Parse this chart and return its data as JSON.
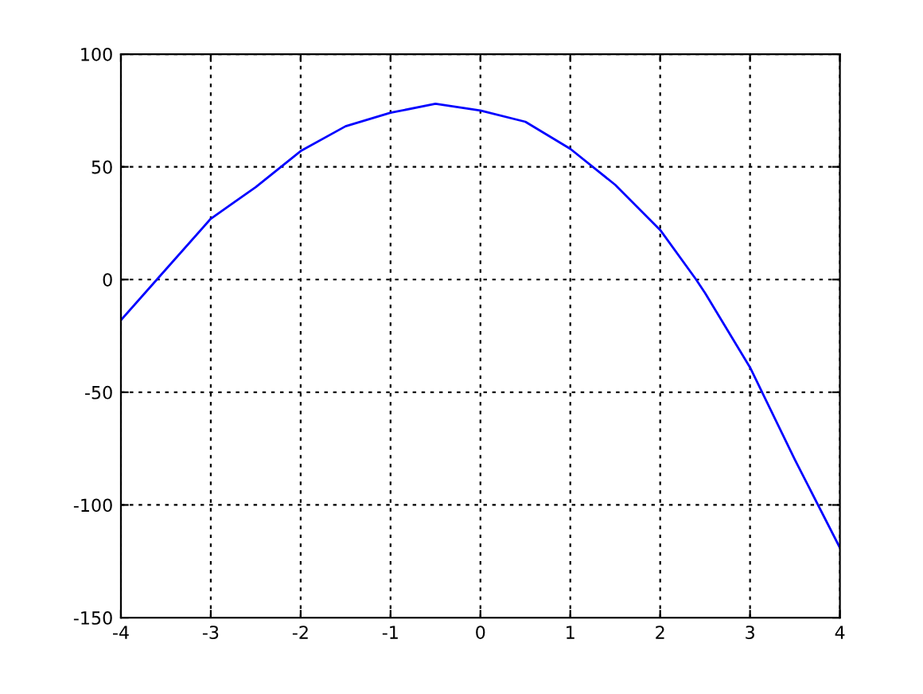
{
  "chart_data": {
    "type": "line",
    "x": [
      -4,
      -3.6,
      -3,
      -2.5,
      -2,
      -1.5,
      -1,
      -0.5,
      0,
      0.5,
      1,
      1.5,
      2,
      2.4,
      2.5,
      3,
      3.5,
      4
    ],
    "series": [
      {
        "color": "#0000ff",
        "values": [
          -18,
          0,
          27,
          41,
          57,
          68,
          74,
          78,
          75,
          70,
          58,
          42,
          22,
          0,
          -6,
          -39,
          -80,
          -119
        ]
      }
    ],
    "xlim": [
      -4,
      4
    ],
    "xticks": [
      -4,
      -3,
      -2,
      -1,
      0,
      1,
      2,
      3,
      4
    ],
    "ylim": [
      -150,
      100
    ],
    "yticks": [
      -150,
      -100,
      -50,
      0,
      50,
      100
    ],
    "grid": true,
    "line_style": "solid",
    "marker": "none"
  }
}
